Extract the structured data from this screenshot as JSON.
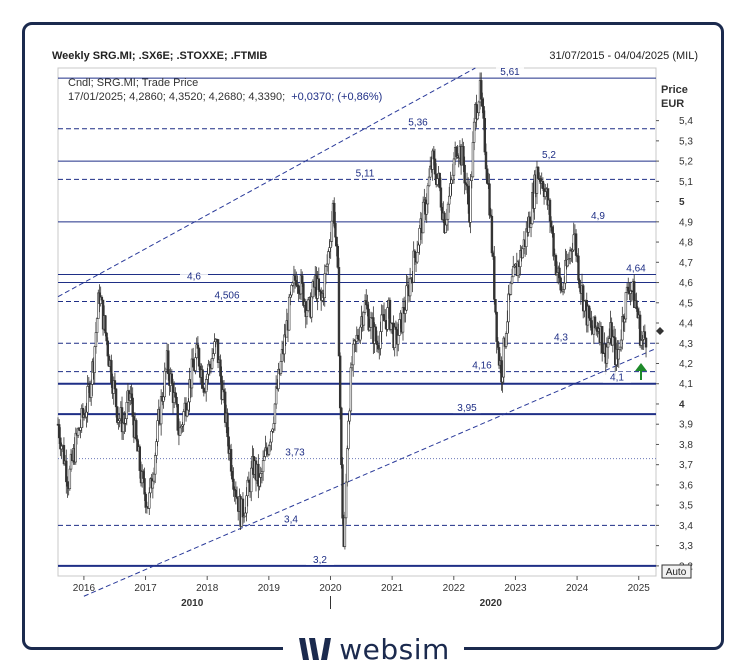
{
  "header": {
    "title": "Weekly SRG.MI; .SX6E; .STOXXE; .FTMIB",
    "date_range": "31/07/2015 - 04/04/2025 (MIL)"
  },
  "info": {
    "line1": "Cndl; SRG.MI; Trade Price",
    "line2_ohlc": "17/01/2025; 4,2860; 4,3520; 4,2680; 4,3390;",
    "line2_change": "+0,0370; (+0,86%)"
  },
  "axis": {
    "price_label": "Price",
    "currency_label": "EUR",
    "auto_button": "Auto"
  },
  "logo": {
    "text": "websim"
  },
  "colors": {
    "level_line": "#1f2f86",
    "channel": "#2a3a9a",
    "candles": "#333333",
    "label_text": "#1f2f86",
    "arrow": "#1e8a2a"
  },
  "chart_data": {
    "type": "candlestick",
    "title": "Weekly SRG.MI; .SX6E; .STOXXE; .FTMIB",
    "ylabel": "Price EUR",
    "ylim": [
      3.15,
      5.66
    ],
    "y_ticks": [
      "3,2",
      "3,3",
      "3,4",
      "3,5",
      "3,6",
      "3,7",
      "3,8",
      "3,9",
      "4",
      "4,1",
      "4,2",
      "4,3",
      "4,4",
      "4,5",
      "4,6",
      "4,7",
      "4,8",
      "4,9",
      "5",
      "5,1",
      "5,2",
      "5,3",
      "5,4"
    ],
    "x_year_ticks": [
      "2016",
      "2017",
      "2018",
      "2019",
      "2020",
      "2021",
      "2022",
      "2023",
      "2024",
      "2025"
    ],
    "x_decade_labels": [
      "2010",
      "2020"
    ],
    "last_close": 4.339,
    "horizontal_levels": [
      {
        "label": "5,61",
        "value": 5.61,
        "style": "solid"
      },
      {
        "label": "5,36",
        "value": 5.36,
        "style": "dashed"
      },
      {
        "label": "5,2",
        "value": 5.2,
        "style": "solid"
      },
      {
        "label": "5,11",
        "value": 5.11,
        "style": "dashed"
      },
      {
        "label": "4,9",
        "value": 4.9,
        "style": "solid"
      },
      {
        "label": "4,64",
        "value": 4.64,
        "style": "solid"
      },
      {
        "label": "4,6",
        "value": 4.6,
        "style": "solid"
      },
      {
        "label": "4,506",
        "value": 4.506,
        "style": "dashed"
      },
      {
        "label": "4,3",
        "value": 4.3,
        "style": "dashed"
      },
      {
        "label": "4,16",
        "value": 4.16,
        "style": "dashed"
      },
      {
        "label": "4,1",
        "value": 4.1,
        "style": "solid"
      },
      {
        "label": "3,95",
        "value": 3.95,
        "style": "solid"
      },
      {
        "label": "3,73",
        "value": 3.73,
        "style": "dotted"
      },
      {
        "label": "3,4",
        "value": 3.4,
        "style": "dashed"
      },
      {
        "label": "3,2",
        "value": 3.2,
        "style": "solid"
      }
    ],
    "trend_channel": {
      "upper": [
        [
          2015.58,
          4.53
        ],
        [
          2022.35,
          5.66
        ]
      ],
      "lower": [
        [
          2016.0,
          3.05
        ],
        [
          2025.25,
          4.27
        ]
      ]
    },
    "close_series": [
      [
        2015.58,
        3.9
      ],
      [
        2015.75,
        3.62
      ],
      [
        2015.9,
        3.85
      ],
      [
        2016.05,
        4.0
      ],
      [
        2016.15,
        4.2
      ],
      [
        2016.25,
        4.55
      ],
      [
        2016.35,
        4.35
      ],
      [
        2016.45,
        4.15
      ],
      [
        2016.55,
        3.95
      ],
      [
        2016.65,
        3.9
      ],
      [
        2016.75,
        4.05
      ],
      [
        2016.85,
        3.8
      ],
      [
        2016.95,
        3.6
      ],
      [
        2017.05,
        3.5
      ],
      [
        2017.15,
        3.75
      ],
      [
        2017.25,
        4.0
      ],
      [
        2017.35,
        4.2
      ],
      [
        2017.45,
        4.05
      ],
      [
        2017.55,
        3.85
      ],
      [
        2017.65,
        4.0
      ],
      [
        2017.75,
        4.15
      ],
      [
        2017.85,
        4.25
      ],
      [
        2017.95,
        4.1
      ],
      [
        2018.05,
        4.2
      ],
      [
        2018.15,
        4.3
      ],
      [
        2018.25,
        4.05
      ],
      [
        2018.35,
        3.8
      ],
      [
        2018.45,
        3.6
      ],
      [
        2018.55,
        3.45
      ],
      [
        2018.65,
        3.55
      ],
      [
        2018.75,
        3.7
      ],
      [
        2018.85,
        3.6
      ],
      [
        2018.95,
        3.75
      ],
      [
        2019.05,
        3.9
      ],
      [
        2019.15,
        4.1
      ],
      [
        2019.25,
        4.3
      ],
      [
        2019.35,
        4.5
      ],
      [
        2019.45,
        4.65
      ],
      [
        2019.55,
        4.55
      ],
      [
        2019.65,
        4.45
      ],
      [
        2019.75,
        4.6
      ],
      [
        2019.85,
        4.5
      ],
      [
        2019.95,
        4.7
      ],
      [
        2020.05,
        5.0
      ],
      [
        2020.12,
        4.6
      ],
      [
        2020.18,
        3.6
      ],
      [
        2020.22,
        3.25
      ],
      [
        2020.28,
        3.9
      ],
      [
        2020.35,
        4.2
      ],
      [
        2020.45,
        4.35
      ],
      [
        2020.55,
        4.5
      ],
      [
        2020.65,
        4.4
      ],
      [
        2020.75,
        4.3
      ],
      [
        2020.85,
        4.4
      ],
      [
        2020.95,
        4.45
      ],
      [
        2021.05,
        4.3
      ],
      [
        2021.15,
        4.4
      ],
      [
        2021.25,
        4.55
      ],
      [
        2021.35,
        4.7
      ],
      [
        2021.45,
        4.85
      ],
      [
        2021.55,
        5.0
      ],
      [
        2021.65,
        5.2
      ],
      [
        2021.75,
        5.1
      ],
      [
        2021.85,
        4.9
      ],
      [
        2021.95,
        5.05
      ],
      [
        2022.05,
        5.3
      ],
      [
        2022.15,
        5.2
      ],
      [
        2022.25,
        4.95
      ],
      [
        2022.35,
        5.45
      ],
      [
        2022.42,
        5.55
      ],
      [
        2022.5,
        5.3
      ],
      [
        2022.58,
        5.0
      ],
      [
        2022.65,
        4.6
      ],
      [
        2022.72,
        4.25
      ],
      [
        2022.78,
        4.15
      ],
      [
        2022.85,
        4.4
      ],
      [
        2022.95,
        4.6
      ],
      [
        2023.05,
        4.7
      ],
      [
        2023.15,
        4.8
      ],
      [
        2023.25,
        4.95
      ],
      [
        2023.35,
        5.15
      ],
      [
        2023.45,
        5.1
      ],
      [
        2023.55,
        4.95
      ],
      [
        2023.65,
        4.7
      ],
      [
        2023.75,
        4.55
      ],
      [
        2023.85,
        4.7
      ],
      [
        2023.95,
        4.85
      ],
      [
        2024.05,
        4.6
      ],
      [
        2024.15,
        4.45
      ],
      [
        2024.25,
        4.35
      ],
      [
        2024.35,
        4.4
      ],
      [
        2024.45,
        4.25
      ],
      [
        2024.55,
        4.35
      ],
      [
        2024.65,
        4.2
      ],
      [
        2024.75,
        4.45
      ],
      [
        2024.85,
        4.6
      ],
      [
        2024.95,
        4.5
      ],
      [
        2025.05,
        4.3
      ],
      [
        2025.12,
        4.339
      ]
    ]
  }
}
